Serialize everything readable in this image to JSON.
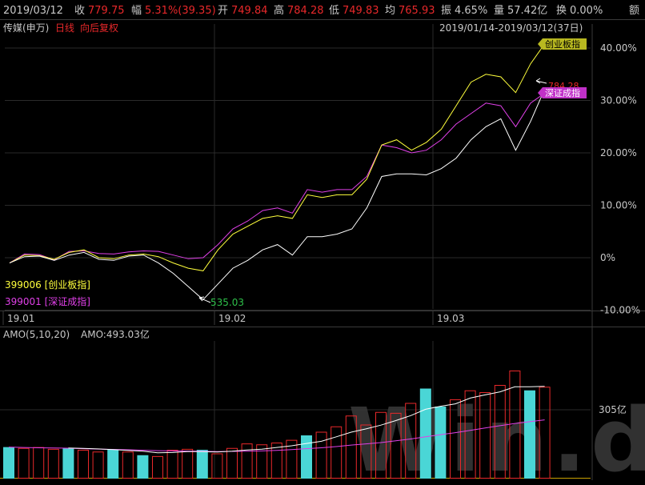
{
  "header": {
    "date": "2019/03/12",
    "close_label": "收",
    "close_value": "779.75",
    "change_label": "幅",
    "change_value": "5.31%(39.35)",
    "open_label": "开",
    "open_value": "749.84",
    "high_label": "高",
    "high_value": "784.28",
    "low_label": "低",
    "low_value": "749.83",
    "avg_label": "均",
    "avg_value": "765.93",
    "amplitude_label": "振",
    "amplitude_value": "4.65%",
    "volume_label": "量",
    "volume_value": "57.42亿",
    "turnover_label": "换",
    "turnover_value": "0.00%",
    "amount_label": "额"
  },
  "chart_header": {
    "index_name": "传媒(申万)",
    "period": "日线",
    "adjust": "向后复权",
    "range": "2019/01/14-2019/03/12(37日)"
  },
  "legend": {
    "cy_label": "399006 [创业板指]",
    "sz_label": "399001 [深证成指]"
  },
  "tags": {
    "cy": "创业板指",
    "sz": "深证成指",
    "last_value": "784.28",
    "min_value": "535.03"
  },
  "volume_header": {
    "label": "AMO(5,10,20)",
    "amo_value": "AMO:493.03亿"
  },
  "watermark": "Win.d",
  "colors": {
    "white": "#ffffff",
    "yellow": "#ffff3c",
    "magenta": "#e040e8",
    "red": "#e8282a",
    "cyan": "#4ad6d6",
    "green": "#2ec04a",
    "grid": "#2a2a2a",
    "text": "#c8c8c8",
    "up": "#e8282a"
  },
  "chart_data": [
    {
      "type": "line",
      "title": "传媒(申万) 日线 向后复权",
      "x_ticks": [
        "19.01",
        "19.02",
        "19.03"
      ],
      "y_ticks": [
        "40.00%",
        "30.00%",
        "20.00%",
        "10.00%",
        "0%",
        "-10.00%"
      ],
      "ylim": [
        -10,
        44
      ],
      "series": [
        {
          "name": "传媒(申万)",
          "color": "white",
          "values": [
            -1,
            0.2,
            0.3,
            -0.5,
            0.5,
            1,
            -0.3,
            -0.5,
            0.3,
            0.5,
            -1,
            -3,
            -5.5,
            -8,
            -5,
            -2,
            -0.5,
            1.5,
            2.5,
            0.5,
            4,
            4,
            4.5,
            5.5,
            9.5,
            15.5,
            16,
            16,
            15.8,
            17,
            19,
            22.5,
            25,
            26.5,
            20.5,
            26,
            32.5
          ]
        },
        {
          "name": "创业板指",
          "color": "yellow",
          "values": [
            -1,
            0.5,
            0.4,
            -0.3,
            1,
            1.5,
            0,
            -0.2,
            0.5,
            0.7,
            0.2,
            -1,
            -2,
            -2.5,
            1.5,
            4.5,
            6,
            7.5,
            8,
            7.5,
            12,
            11.5,
            12,
            12,
            15,
            21.5,
            22.5,
            20.5,
            22,
            24.5,
            29,
            33.5,
            35,
            34.5,
            31.5,
            37,
            41
          ]
        },
        {
          "name": "深证成指",
          "color": "magenta",
          "values": [
            -1,
            0.7,
            0.6,
            -0.4,
            1.2,
            1.3,
            0.8,
            0.7,
            1.1,
            1.3,
            1.2,
            0.5,
            -0.2,
            0,
            2.5,
            5.5,
            7,
            9,
            9.5,
            8.5,
            13,
            12.5,
            13,
            13,
            15.5,
            21.5,
            21,
            20,
            20.5,
            22.5,
            25.5,
            27.5,
            29.5,
            29,
            25,
            29.5,
            31.5
          ]
        }
      ]
    },
    {
      "type": "bar",
      "title": "AMO(5,10,20)",
      "y_ticks": [
        "305亿"
      ],
      "ylim": [
        0,
        770
      ],
      "values": [
        175,
        170,
        175,
        165,
        170,
        160,
        150,
        160,
        150,
        130,
        125,
        160,
        165,
        160,
        140,
        170,
        195,
        190,
        200,
        215,
        240,
        260,
        290,
        350,
        300,
        370,
        365,
        420,
        500,
        400,
        440,
        490,
        480,
        520,
        600,
        490,
        510
      ],
      "colors": [
        "cyan",
        "red",
        "red",
        "red",
        "cyan",
        "red",
        "red",
        "cyan",
        "red",
        "cyan",
        "red",
        "red",
        "red",
        "cyan",
        "red",
        "red",
        "red",
        "red",
        "red",
        "red",
        "cyan",
        "red",
        "red",
        "red",
        "red",
        "red",
        "red",
        "red",
        "cyan",
        "cyan",
        "red",
        "red",
        "red",
        "red",
        "red",
        "cyan",
        "red"
      ],
      "ma_white": [
        null,
        null,
        null,
        null,
        170,
        168,
        165,
        161,
        157,
        152,
        143,
        145,
        150,
        150,
        148,
        152,
        159,
        163,
        173,
        182,
        195,
        207,
        232,
        258,
        276,
        297,
        322,
        350,
        385,
        402,
        415,
        447,
        465,
        482,
        510,
        510,
        512
      ],
      "ma_magenta": [
        175,
        173,
        171,
        170,
        169,
        166,
        164,
        162,
        160,
        158,
        155,
        154,
        153,
        152,
        150,
        151,
        152,
        154,
        157,
        161,
        166,
        171,
        178,
        186,
        193,
        200,
        210,
        220,
        232,
        244,
        255,
        268,
        281,
        294,
        306,
        316,
        326
      ]
    }
  ]
}
